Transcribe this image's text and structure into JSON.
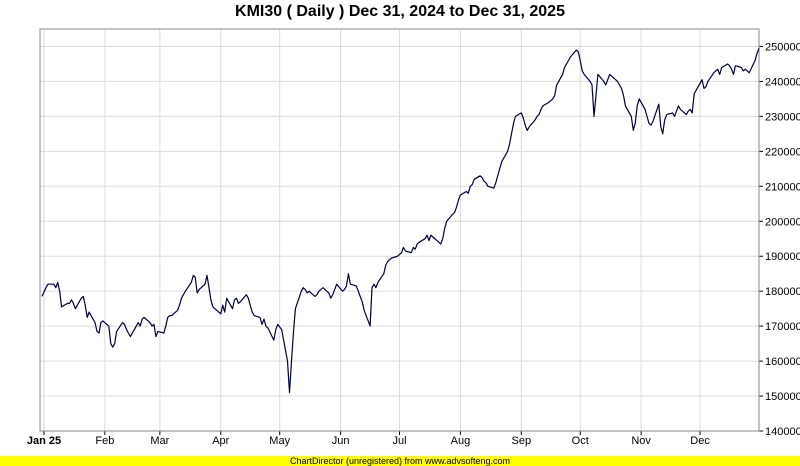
{
  "chart_data": {
    "type": "line",
    "title": "KMI30 ( Daily ) Dec 31, 2024 to Dec 31, 2025",
    "ylim": [
      140000,
      255000
    ],
    "yticks": [
      140000,
      150000,
      160000,
      170000,
      180000,
      190000,
      200000,
      210000,
      220000,
      230000,
      240000,
      250000
    ],
    "x_range": [
      "2024-12-31",
      "2025-12-31"
    ],
    "month_ticks": [
      {
        "label": "Jan 25",
        "date": "2025-01-01",
        "bold": true
      },
      {
        "label": "Feb",
        "date": "2025-02-01"
      },
      {
        "label": "Mar",
        "date": "2025-03-01"
      },
      {
        "label": "Apr",
        "date": "2025-04-01"
      },
      {
        "label": "May",
        "date": "2025-05-01"
      },
      {
        "label": "Jun",
        "date": "2025-06-01"
      },
      {
        "label": "Jul",
        "date": "2025-07-01"
      },
      {
        "label": "Aug",
        "date": "2025-08-01"
      },
      {
        "label": "Sep",
        "date": "2025-09-01"
      },
      {
        "label": "Oct",
        "date": "2025-10-01"
      },
      {
        "label": "Nov",
        "date": "2025-11-01"
      },
      {
        "label": "Dec",
        "date": "2025-12-01"
      }
    ],
    "grid": true,
    "line_color": "#000040",
    "series": [
      {
        "points": [
          [
            "2024-12-31",
            178500
          ],
          [
            "2025-01-02",
            181000
          ],
          [
            "2025-01-03",
            182000
          ],
          [
            "2025-01-06",
            182000
          ],
          [
            "2025-01-07",
            181000
          ],
          [
            "2025-01-08",
            182500
          ],
          [
            "2025-01-09",
            180000
          ],
          [
            "2025-01-10",
            175500
          ],
          [
            "2025-01-13",
            176500
          ],
          [
            "2025-01-14",
            176500
          ],
          [
            "2025-01-15",
            177500
          ],
          [
            "2025-01-16",
            176500
          ],
          [
            "2025-01-17",
            175000
          ],
          [
            "2025-01-20",
            178000
          ],
          [
            "2025-01-21",
            178500
          ],
          [
            "2025-01-22",
            176000
          ],
          [
            "2025-01-23",
            172500
          ],
          [
            "2025-01-24",
            174000
          ],
          [
            "2025-01-27",
            171000
          ],
          [
            "2025-01-28",
            168500
          ],
          [
            "2025-01-29",
            168000
          ],
          [
            "2025-01-30",
            171000
          ],
          [
            "2025-01-31",
            171500
          ],
          [
            "2025-02-03",
            170000
          ],
          [
            "2025-02-04",
            165000
          ],
          [
            "2025-02-05",
            164000
          ],
          [
            "2025-02-06",
            165000
          ],
          [
            "2025-02-07",
            168500
          ],
          [
            "2025-02-10",
            171000
          ],
          [
            "2025-02-11",
            170500
          ],
          [
            "2025-02-12",
            169000
          ],
          [
            "2025-02-13",
            168000
          ],
          [
            "2025-02-14",
            167000
          ],
          [
            "2025-02-17",
            170000
          ],
          [
            "2025-02-18",
            171000
          ],
          [
            "2025-02-19",
            170000
          ],
          [
            "2025-02-20",
            172000
          ],
          [
            "2025-02-21",
            172500
          ],
          [
            "2025-02-24",
            171000
          ],
          [
            "2025-02-25",
            170000
          ],
          [
            "2025-02-26",
            170500
          ],
          [
            "2025-02-27",
            167000
          ],
          [
            "2025-02-28",
            168500
          ],
          [
            "2025-03-03",
            168000
          ],
          [
            "2025-03-04",
            170000
          ],
          [
            "2025-03-05",
            172500
          ],
          [
            "2025-03-06",
            173000
          ],
          [
            "2025-03-07",
            173000
          ],
          [
            "2025-03-10",
            174500
          ],
          [
            "2025-03-11",
            176000
          ],
          [
            "2025-03-12",
            178000
          ],
          [
            "2025-03-13",
            179000
          ],
          [
            "2025-03-14",
            180000
          ],
          [
            "2025-03-17",
            182500
          ],
          [
            "2025-03-18",
            184500
          ],
          [
            "2025-03-19",
            184000
          ],
          [
            "2025-03-20",
            179500
          ],
          [
            "2025-03-21",
            180500
          ],
          [
            "2025-03-24",
            182000
          ],
          [
            "2025-03-25",
            184500
          ],
          [
            "2025-03-26",
            181000
          ],
          [
            "2025-03-27",
            177500
          ],
          [
            "2025-03-28",
            175500
          ],
          [
            "2025-04-01",
            173500
          ],
          [
            "2025-04-02",
            176000
          ],
          [
            "2025-04-03",
            174000
          ],
          [
            "2025-04-04",
            178000
          ],
          [
            "2025-04-07",
            175000
          ],
          [
            "2025-04-08",
            177500
          ],
          [
            "2025-04-09",
            178000
          ],
          [
            "2025-04-10",
            176500
          ],
          [
            "2025-04-11",
            177000
          ],
          [
            "2025-04-14",
            179000
          ],
          [
            "2025-04-15",
            178000
          ],
          [
            "2025-04-16",
            176000
          ],
          [
            "2025-04-17",
            174000
          ],
          [
            "2025-04-18",
            173000
          ],
          [
            "2025-04-21",
            172500
          ],
          [
            "2025-04-22",
            170500
          ],
          [
            "2025-04-23",
            172000
          ],
          [
            "2025-04-24",
            170000
          ],
          [
            "2025-04-25",
            169500
          ],
          [
            "2025-04-28",
            166000
          ],
          [
            "2025-04-29",
            169000
          ],
          [
            "2025-04-30",
            170500
          ],
          [
            "2025-05-02",
            169000
          ],
          [
            "2025-05-05",
            160000
          ],
          [
            "2025-05-06",
            151000
          ],
          [
            "2025-05-07",
            160000
          ],
          [
            "2025-05-08",
            168000
          ],
          [
            "2025-05-09",
            175000
          ],
          [
            "2025-05-12",
            180000
          ],
          [
            "2025-05-13",
            181000
          ],
          [
            "2025-05-14",
            180500
          ],
          [
            "2025-05-15",
            179500
          ],
          [
            "2025-05-16",
            180000
          ],
          [
            "2025-05-19",
            178500
          ],
          [
            "2025-05-20",
            179000
          ],
          [
            "2025-05-21",
            180000
          ],
          [
            "2025-05-22",
            180500
          ],
          [
            "2025-05-23",
            181000
          ],
          [
            "2025-05-26",
            179500
          ],
          [
            "2025-05-27",
            178000
          ],
          [
            "2025-05-28",
            179000
          ],
          [
            "2025-05-29",
            180500
          ],
          [
            "2025-05-30",
            182000
          ],
          [
            "2025-06-02",
            180000
          ],
          [
            "2025-06-03",
            180500
          ],
          [
            "2025-06-04",
            181500
          ],
          [
            "2025-06-05",
            185000
          ],
          [
            "2025-06-06",
            182000
          ],
          [
            "2025-06-09",
            181500
          ],
          [
            "2025-06-10",
            180000
          ],
          [
            "2025-06-11",
            178500
          ],
          [
            "2025-06-12",
            177000
          ],
          [
            "2025-06-13",
            174500
          ],
          [
            "2025-06-16",
            170000
          ],
          [
            "2025-06-17",
            181000
          ],
          [
            "2025-06-18",
            182000
          ],
          [
            "2025-06-19",
            181000
          ],
          [
            "2025-06-20",
            182500
          ],
          [
            "2025-06-23",
            185000
          ],
          [
            "2025-06-24",
            187500
          ],
          [
            "2025-06-25",
            188500
          ],
          [
            "2025-06-26",
            189000
          ],
          [
            "2025-06-27",
            189500
          ],
          [
            "2025-06-30",
            190000
          ],
          [
            "2025-07-01",
            190500
          ],
          [
            "2025-07-02",
            191000
          ],
          [
            "2025-07-03",
            192500
          ],
          [
            "2025-07-04",
            191500
          ],
          [
            "2025-07-07",
            191000
          ],
          [
            "2025-07-08",
            192500
          ],
          [
            "2025-07-09",
            192000
          ],
          [
            "2025-07-10",
            193500
          ],
          [
            "2025-07-11",
            194000
          ],
          [
            "2025-07-14",
            195000
          ],
          [
            "2025-07-15",
            196000
          ],
          [
            "2025-07-16",
            194500
          ],
          [
            "2025-07-17",
            196000
          ],
          [
            "2025-07-18",
            195500
          ],
          [
            "2025-07-21",
            194000
          ],
          [
            "2025-07-22",
            193500
          ],
          [
            "2025-07-23",
            195000
          ],
          [
            "2025-07-24",
            198000
          ],
          [
            "2025-07-25",
            200000
          ],
          [
            "2025-07-28",
            202000
          ],
          [
            "2025-07-29",
            202500
          ],
          [
            "2025-07-30",
            204000
          ],
          [
            "2025-07-31",
            206000
          ],
          [
            "2025-08-01",
            207500
          ],
          [
            "2025-08-04",
            208500
          ],
          [
            "2025-08-05",
            208000
          ],
          [
            "2025-08-06",
            210000
          ],
          [
            "2025-08-07",
            210500
          ],
          [
            "2025-08-08",
            212000
          ],
          [
            "2025-08-11",
            213000
          ],
          [
            "2025-08-12",
            212500
          ],
          [
            "2025-08-13",
            211500
          ],
          [
            "2025-08-14",
            211000
          ],
          [
            "2025-08-15",
            210000
          ],
          [
            "2025-08-18",
            209500
          ],
          [
            "2025-08-19",
            211000
          ],
          [
            "2025-08-20",
            213000
          ],
          [
            "2025-08-21",
            215000
          ],
          [
            "2025-08-22",
            217000
          ],
          [
            "2025-08-25",
            220000
          ],
          [
            "2025-08-26",
            222000
          ],
          [
            "2025-08-27",
            225000
          ],
          [
            "2025-08-28",
            228000
          ],
          [
            "2025-08-29",
            230000
          ],
          [
            "2025-09-01",
            231000
          ],
          [
            "2025-09-02",
            229500
          ],
          [
            "2025-09-03",
            227500
          ],
          [
            "2025-09-04",
            226000
          ],
          [
            "2025-09-05",
            227000
          ],
          [
            "2025-09-08",
            229000
          ],
          [
            "2025-09-09",
            230000
          ],
          [
            "2025-09-10",
            230500
          ],
          [
            "2025-09-11",
            232000
          ],
          [
            "2025-09-12",
            233000
          ],
          [
            "2025-09-15",
            234000
          ],
          [
            "2025-09-16",
            234500
          ],
          [
            "2025-09-17",
            235000
          ],
          [
            "2025-09-18",
            236000
          ],
          [
            "2025-09-19",
            239000
          ],
          [
            "2025-09-22",
            242000
          ],
          [
            "2025-09-23",
            244000
          ],
          [
            "2025-09-24",
            245000
          ],
          [
            "2025-09-25",
            246000
          ],
          [
            "2025-09-26",
            247000
          ],
          [
            "2025-09-29",
            249000
          ],
          [
            "2025-09-30",
            248500
          ],
          [
            "2025-10-01",
            246000
          ],
          [
            "2025-10-02",
            243000
          ],
          [
            "2025-10-03",
            242000
          ],
          [
            "2025-10-06",
            240000
          ],
          [
            "2025-10-07",
            239000
          ],
          [
            "2025-10-08",
            230000
          ],
          [
            "2025-10-09",
            236000
          ],
          [
            "2025-10-10",
            242000
          ],
          [
            "2025-10-13",
            240000
          ],
          [
            "2025-10-14",
            239000
          ],
          [
            "2025-10-15",
            240500
          ],
          [
            "2025-10-16",
            242000
          ],
          [
            "2025-10-17",
            241500
          ],
          [
            "2025-10-20",
            240000
          ],
          [
            "2025-10-21",
            239000
          ],
          [
            "2025-10-22",
            238000
          ],
          [
            "2025-10-23",
            236000
          ],
          [
            "2025-10-24",
            233000
          ],
          [
            "2025-10-27",
            230000
          ],
          [
            "2025-10-28",
            226000
          ],
          [
            "2025-10-29",
            228000
          ],
          [
            "2025-10-30",
            233000
          ],
          [
            "2025-10-31",
            235000
          ],
          [
            "2025-11-03",
            232000
          ],
          [
            "2025-11-04",
            230000
          ],
          [
            "2025-11-05",
            228000
          ],
          [
            "2025-11-06",
            227500
          ],
          [
            "2025-11-07",
            228500
          ],
          [
            "2025-11-10",
            233500
          ],
          [
            "2025-11-11",
            227000
          ],
          [
            "2025-11-12",
            225000
          ],
          [
            "2025-11-13",
            229000
          ],
          [
            "2025-11-14",
            230500
          ],
          [
            "2025-11-17",
            231000
          ],
          [
            "2025-11-18",
            230000
          ],
          [
            "2025-11-19",
            231500
          ],
          [
            "2025-11-20",
            233000
          ],
          [
            "2025-11-21",
            232000
          ],
          [
            "2025-11-24",
            230500
          ],
          [
            "2025-11-25",
            231500
          ],
          [
            "2025-11-26",
            232000
          ],
          [
            "2025-11-27",
            231000
          ],
          [
            "2025-11-28",
            236500
          ],
          [
            "2025-12-01",
            239500
          ],
          [
            "2025-12-02",
            240500
          ],
          [
            "2025-12-03",
            238000
          ],
          [
            "2025-12-04",
            238500
          ],
          [
            "2025-12-05",
            240000
          ],
          [
            "2025-12-08",
            242500
          ],
          [
            "2025-12-09",
            243000
          ],
          [
            "2025-12-10",
            243500
          ],
          [
            "2025-12-11",
            242000
          ],
          [
            "2025-12-12",
            244000
          ],
          [
            "2025-12-15",
            245000
          ],
          [
            "2025-12-16",
            244500
          ],
          [
            "2025-12-17",
            243500
          ],
          [
            "2025-12-18",
            242000
          ],
          [
            "2025-12-19",
            244500
          ],
          [
            "2025-12-22",
            244000
          ],
          [
            "2025-12-23",
            243000
          ],
          [
            "2025-12-24",
            243500
          ],
          [
            "2025-12-26",
            242500
          ],
          [
            "2025-12-29",
            246000
          ],
          [
            "2025-12-30",
            248000
          ],
          [
            "2025-12-31",
            249500
          ]
        ]
      }
    ]
  },
  "footer": {
    "text": "ChartDirector (unregistered) from www.advsofteng.com",
    "background": "#ffff00"
  }
}
